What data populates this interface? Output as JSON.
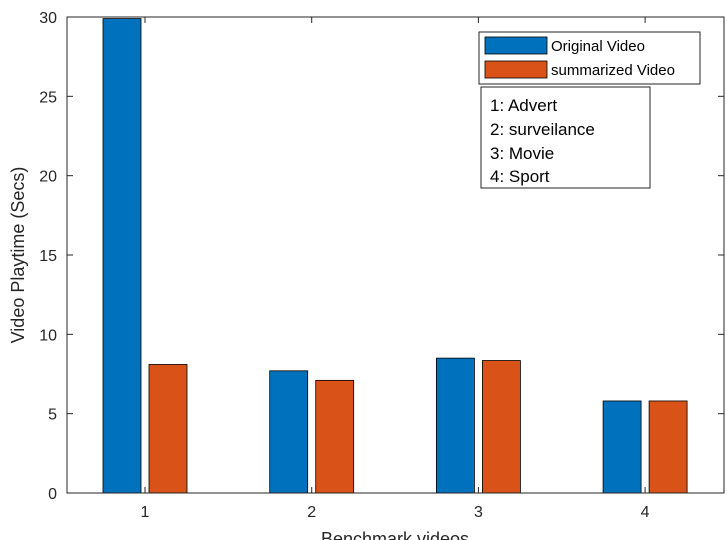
{
  "chart_data": {
    "type": "bar",
    "categories": [
      "1",
      "2",
      "3",
      "4"
    ],
    "series": [
      {
        "name": "Original Video",
        "values": [
          29.9,
          7.7,
          8.5,
          5.8
        ],
        "color": "#0072BD"
      },
      {
        "name": "summarized Video",
        "values": [
          8.1,
          7.1,
          8.35,
          5.8
        ],
        "color": "#D95319"
      }
    ],
    "title": "",
    "xlabel": "Benchmark videos",
    "ylabel": "Video Playtime (Secs)",
    "ylim": [
      0,
      30
    ],
    "yticks": [
      "0",
      "5",
      "10",
      "15",
      "20",
      "25",
      "30"
    ],
    "grid": false,
    "legend_position": "top-right",
    "annotation_lines": [
      "1: Advert",
      "2: surveilance",
      "3: Movie",
      "4: Sport"
    ]
  }
}
